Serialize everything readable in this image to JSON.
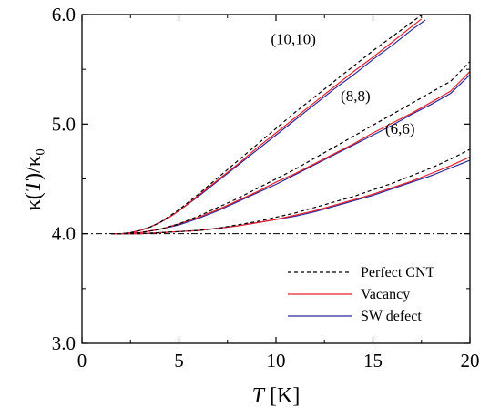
{
  "chart_data": {
    "type": "line",
    "xlabel": {
      "italic": "T",
      "rest": " [K]"
    },
    "ylabel": {
      "pre": "κ(",
      "italic": "T",
      "post": ")/κ₀"
    },
    "xlim": [
      0,
      20
    ],
    "ylim": [
      3.0,
      6.0
    ],
    "x_ticks": [
      0,
      5,
      10,
      15,
      20
    ],
    "x_tick_labels": [
      "0",
      "5",
      "10",
      "15",
      "20"
    ],
    "y_ticks": [
      3.0,
      4.0,
      5.0,
      6.0
    ],
    "y_tick_labels": [
      "3.0",
      "4.0",
      "5.0",
      "6.0"
    ],
    "grid": false,
    "reference_line": {
      "y": 4.0,
      "style": "dash-dot"
    },
    "colors": {
      "perfect": "#000000",
      "vacancy": "#e8222a",
      "sw": "#2b2b9e"
    },
    "legend": {
      "position": "bottom-right",
      "entries": [
        {
          "label": "Perfect CNT",
          "key": "perfect",
          "dash": true
        },
        {
          "label": "Vacancy",
          "key": "vacancy",
          "dash": false
        },
        {
          "label": "SW defect",
          "key": "sw",
          "dash": false
        }
      ]
    },
    "annotations": [
      {
        "text": "(10,10)",
        "x": 10.9,
        "y": 5.73
      },
      {
        "text": "(8,8)",
        "x": 14.1,
        "y": 5.21
      },
      {
        "text": "(6,6)",
        "x": 16.4,
        "y": 4.91
      }
    ],
    "groups": [
      {
        "name": "(10,10)",
        "series": [
          {
            "key": "perfect",
            "x": [
              1.5,
              2,
              2.5,
              3,
              3.5,
              4,
              4.5,
              5,
              6,
              7,
              8,
              9,
              10,
              11,
              12,
              13,
              14,
              15,
              16,
              17,
              17.7
            ],
            "y": [
              4.0,
              4.0,
              4.01,
              4.03,
              4.06,
              4.1,
              4.16,
              4.22,
              4.36,
              4.51,
              4.66,
              4.81,
              4.96,
              5.11,
              5.25,
              5.39,
              5.53,
              5.67,
              5.8,
              5.93,
              6.02
            ]
          },
          {
            "key": "vacancy",
            "x": [
              1.5,
              2,
              2.5,
              3,
              3.5,
              4,
              4.5,
              5,
              6,
              7,
              8,
              9,
              10,
              11,
              12,
              13,
              14,
              15,
              16,
              17,
              17.5
            ],
            "y": [
              4.0,
              4.0,
              4.01,
              4.03,
              4.06,
              4.1,
              4.15,
              4.21,
              4.35,
              4.49,
              4.63,
              4.78,
              4.92,
              5.06,
              5.2,
              5.34,
              5.48,
              5.61,
              5.75,
              5.89,
              5.96
            ]
          },
          {
            "key": "sw",
            "x": [
              1.5,
              2,
              2.5,
              3,
              3.5,
              4,
              4.5,
              5,
              6,
              7,
              8,
              9,
              10,
              11,
              12,
              13,
              14,
              15,
              16,
              17,
              17.7
            ],
            "y": [
              4.0,
              4.0,
              4.01,
              4.03,
              4.06,
              4.1,
              4.15,
              4.21,
              4.34,
              4.48,
              4.62,
              4.76,
              4.9,
              5.04,
              5.18,
              5.32,
              5.45,
              5.59,
              5.72,
              5.86,
              5.95
            ]
          }
        ]
      },
      {
        "name": "(8,8)",
        "series": [
          {
            "key": "perfect",
            "x": [
              1.5,
              2,
              3,
              4,
              5,
              6,
              7,
              8,
              9,
              10,
              11,
              12,
              13,
              14,
              15,
              16,
              17,
              18,
              19,
              20
            ],
            "y": [
              4.0,
              4.0,
              4.01,
              4.04,
              4.09,
              4.16,
              4.24,
              4.32,
              4.41,
              4.5,
              4.59,
              4.69,
              4.79,
              4.89,
              4.99,
              5.09,
              5.19,
              5.29,
              5.39,
              5.57
            ]
          },
          {
            "key": "vacancy",
            "x": [
              1.5,
              2,
              3,
              4,
              5,
              6,
              7,
              8,
              9,
              10,
              11,
              12,
              13,
              14,
              15,
              16,
              17,
              18,
              19,
              20
            ],
            "y": [
              4.0,
              4.0,
              4.01,
              4.04,
              4.09,
              4.15,
              4.22,
              4.3,
              4.38,
              4.47,
              4.55,
              4.64,
              4.73,
              4.82,
              4.92,
              5.01,
              5.1,
              5.2,
              5.3,
              5.48
            ]
          },
          {
            "key": "sw",
            "x": [
              1.5,
              2,
              3,
              4,
              5,
              6,
              7,
              8,
              9,
              10,
              11,
              12,
              13,
              14,
              15,
              16,
              17,
              18,
              19,
              20
            ],
            "y": [
              4.0,
              4.0,
              4.01,
              4.04,
              4.08,
              4.14,
              4.21,
              4.29,
              4.37,
              4.45,
              4.54,
              4.63,
              4.72,
              4.81,
              4.9,
              4.99,
              5.09,
              5.18,
              5.28,
              5.45
            ]
          }
        ]
      },
      {
        "name": "(6,6)",
        "series": [
          {
            "key": "perfect",
            "x": [
              1.5,
              2,
              3,
              4,
              5,
              6,
              7,
              8,
              9,
              10,
              11,
              12,
              13,
              14,
              15,
              16,
              17,
              18,
              19,
              20
            ],
            "y": [
              4.0,
              4.0,
              4.0,
              4.01,
              4.02,
              4.03,
              4.05,
              4.08,
              4.11,
              4.15,
              4.19,
              4.24,
              4.29,
              4.34,
              4.4,
              4.46,
              4.53,
              4.6,
              4.68,
              4.77
            ]
          },
          {
            "key": "vacancy",
            "x": [
              1.5,
              2,
              3,
              4,
              5,
              6,
              7,
              8,
              9,
              10,
              11,
              12,
              13,
              14,
              15,
              16,
              17,
              18,
              19,
              20
            ],
            "y": [
              4.0,
              4.0,
              4.0,
              4.01,
              4.02,
              4.03,
              4.05,
              4.07,
              4.1,
              4.13,
              4.17,
              4.21,
              4.26,
              4.31,
              4.36,
              4.42,
              4.48,
              4.55,
              4.62,
              4.7
            ]
          },
          {
            "key": "sw",
            "x": [
              1.5,
              2,
              3,
              4,
              5,
              6,
              7,
              8,
              9,
              10,
              11,
              12,
              13,
              14,
              15,
              16,
              17,
              18,
              19,
              20
            ],
            "y": [
              4.0,
              4.0,
              4.0,
              4.01,
              4.02,
              4.03,
              4.05,
              4.07,
              4.1,
              4.13,
              4.16,
              4.2,
              4.25,
              4.3,
              4.35,
              4.41,
              4.47,
              4.53,
              4.6,
              4.67
            ]
          }
        ]
      }
    ]
  }
}
